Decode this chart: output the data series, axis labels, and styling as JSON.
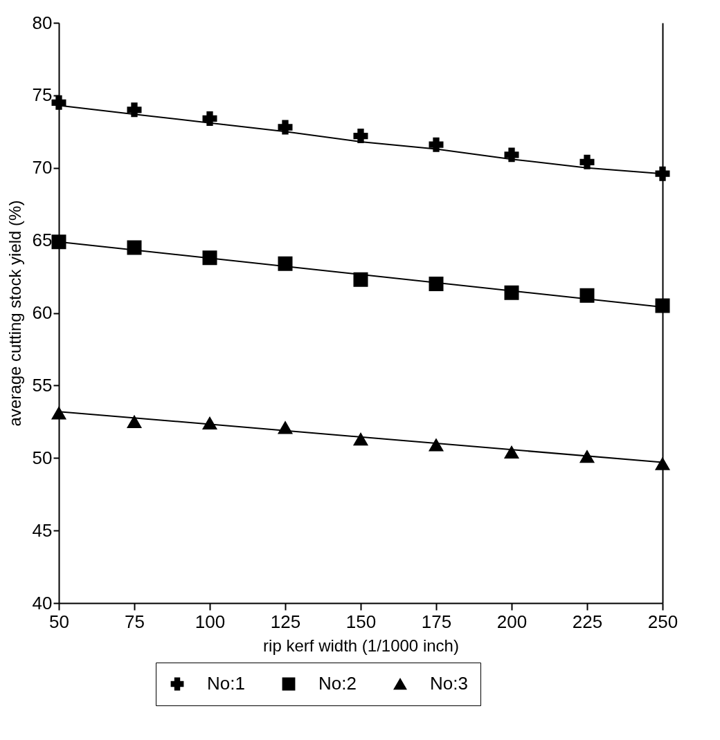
{
  "chart_data": {
    "type": "scatter",
    "xlabel": "rip kerf width (1/1000 inch)",
    "ylabel": "average cutting stock yield (%)",
    "x": [
      50,
      75,
      100,
      125,
      150,
      175,
      200,
      225,
      250
    ],
    "series": [
      {
        "name": "No:1",
        "color": "#000000",
        "marker": "cross",
        "values": [
          74.5,
          74.0,
          73.4,
          72.8,
          72.2,
          71.6,
          70.9,
          70.4,
          69.6
        ]
      },
      {
        "name": "No:2",
        "color": "#000000",
        "marker": "square",
        "values": [
          64.9,
          64.5,
          63.8,
          63.4,
          62.3,
          62.0,
          61.4,
          61.2,
          60.5
        ]
      },
      {
        "name": "No:3",
        "color": "#000000",
        "marker": "triangle",
        "values": [
          53.1,
          52.5,
          52.4,
          52.1,
          51.3,
          50.9,
          50.4,
          50.1,
          49.6
        ]
      },
      {
        "type": "line",
        "color": "#000000",
        "x": [
          50,
          75,
          100,
          125,
          150,
          175,
          200,
          225,
          250
        ],
        "values": [
          74.3,
          73.7,
          73.1,
          72.5,
          71.8,
          71.3,
          70.6,
          70.0,
          69.6
        ]
      },
      {
        "type": "line",
        "color": "#000000",
        "x": [
          50,
          250
        ],
        "values": [
          64.9,
          60.4
        ]
      },
      {
        "type": "line",
        "color": "#000000",
        "x": [
          50,
          250
        ],
        "values": [
          53.2,
          49.7
        ]
      }
    ],
    "xlim": [
      50,
      250
    ],
    "xticks": [
      50,
      75,
      100,
      125,
      150,
      175,
      200,
      225,
      250
    ],
    "ylim": [
      40,
      80
    ],
    "yticks": [
      40,
      45,
      50,
      55,
      60,
      65,
      70,
      75,
      80
    ],
    "grid": false,
    "legend": "bottom"
  }
}
